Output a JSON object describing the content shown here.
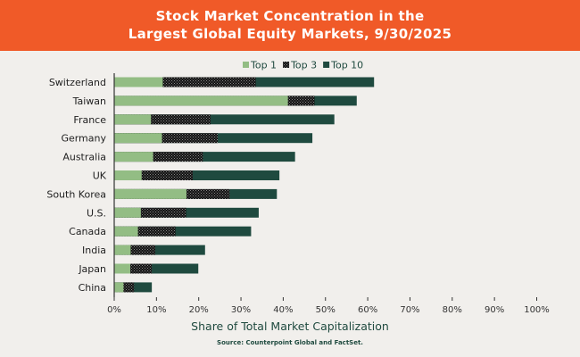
{
  "header": {
    "title_line1": "Stock Market Concentration in the",
    "title_line2": "Largest Global Equity Markets, 9/30/2025"
  },
  "source": "Source: Counterpoint Global and FactSet.",
  "chart_data": {
    "type": "bar",
    "orientation": "horizontal",
    "stacked": false,
    "overlapping": true,
    "title": "Stock Market Concentration in the Largest Global Equity Markets, 9/30/2025",
    "xlabel": "Share of Total Market Capitalization",
    "ylabel": "",
    "xlim": [
      0,
      100
    ],
    "x_ticks": [
      "0%",
      "10%",
      "20%",
      "30%",
      "40%",
      "50%",
      "60%",
      "70%",
      "80%",
      "90%",
      "100%"
    ],
    "grid": false,
    "legend_position": "top-right",
    "categories": [
      "Switzerland",
      "Taiwan",
      "France",
      "Germany",
      "Australia",
      "UK",
      "South Korea",
      "U.S.",
      "Canada",
      "India",
      "Japan",
      "China"
    ],
    "series": [
      {
        "name": "Top 1",
        "color": "#93bd84",
        "pattern": "solid",
        "values": [
          11.5,
          41.1,
          8.7,
          11.3,
          9.2,
          6.5,
          17.1,
          6.3,
          5.6,
          3.9,
          3.8,
          2.2
        ]
      },
      {
        "name": "Top 3",
        "color": "#111111",
        "pattern": "dotted",
        "values": [
          33.5,
          47.4,
          22.8,
          24.5,
          21.0,
          18.6,
          27.3,
          17.0,
          14.5,
          9.7,
          8.9,
          4.7
        ]
      },
      {
        "name": "Top 10",
        "color": "#1f4a3f",
        "pattern": "solid",
        "values": [
          61.5,
          57.4,
          52.1,
          46.9,
          42.8,
          39.1,
          38.5,
          34.2,
          32.4,
          21.5,
          19.9,
          8.9
        ]
      }
    ]
  }
}
